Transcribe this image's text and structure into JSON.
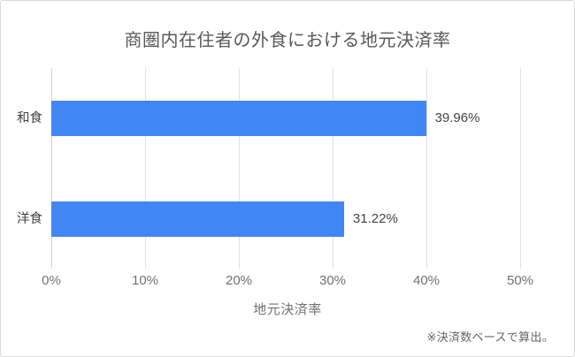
{
  "chart_data": {
    "type": "bar",
    "orientation": "horizontal",
    "title": "商圏内在住者の外食における地元決済率",
    "categories": [
      "和食",
      "洋食"
    ],
    "values": [
      39.96,
      31.22
    ],
    "value_labels": [
      "39.96%",
      "31.22%"
    ],
    "xlabel": "地元決済率",
    "xlim": [
      0,
      50
    ],
    "x_ticks": [
      "0%",
      "10%",
      "20%",
      "30%",
      "40%",
      "50%"
    ],
    "grid": true,
    "legend_position": "none",
    "bar_color": "#4285f4",
    "note": "※決済数ベースで算出。"
  }
}
